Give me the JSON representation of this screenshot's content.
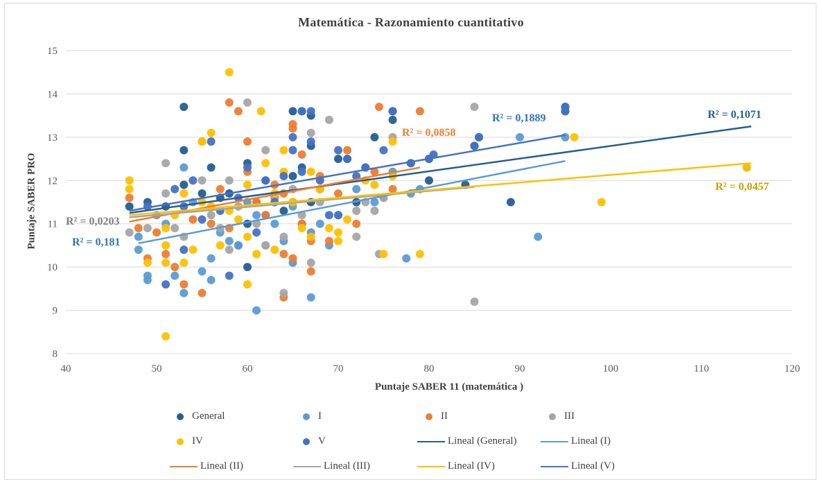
{
  "chart_data": {
    "type": "scatter",
    "title": "Matemática - Razonamiento  cuantitativo",
    "xlabel": "Puntaje  SABER 11 (matemática  )",
    "ylabel": "Puntaje  SABER PRO",
    "xlim": [
      40,
      120
    ],
    "ylim": [
      8,
      15
    ],
    "x_ticks": [
      "40",
      "50",
      "60",
      "70",
      "80",
      "90",
      "100",
      "110",
      "120"
    ],
    "y_ticks": [
      "8",
      "9",
      "10",
      "11",
      "12",
      "13",
      "14",
      "15"
    ],
    "grid": "horizontal",
    "legend_position": "bottom",
    "series": [
      {
        "name": "General",
        "color": "#255e91",
        "points": [
          [
            47,
            11.4
          ],
          [
            49,
            11.5
          ],
          [
            51,
            11.4
          ],
          [
            53,
            13.7
          ],
          [
            53,
            12.7
          ],
          [
            53,
            11.9
          ],
          [
            55,
            11.7
          ],
          [
            56,
            12.3
          ],
          [
            57,
            11.6
          ],
          [
            58,
            11.7
          ],
          [
            59,
            10.5
          ],
          [
            60,
            12.4
          ],
          [
            60,
            11.0
          ],
          [
            60,
            10.0
          ],
          [
            61,
            11.5
          ],
          [
            62,
            12.0
          ],
          [
            62,
            11.2
          ],
          [
            63,
            11.6
          ],
          [
            64,
            11.3
          ],
          [
            65,
            13.6
          ],
          [
            65,
            12.1
          ],
          [
            65,
            11.5
          ],
          [
            66,
            12.3
          ],
          [
            66,
            13.6
          ],
          [
            67,
            13.5
          ],
          [
            67,
            12.8
          ],
          [
            67,
            11.5
          ],
          [
            68,
            11.8
          ],
          [
            70,
            12.5
          ],
          [
            71,
            12.5
          ],
          [
            72,
            11.5
          ],
          [
            73,
            12.3
          ],
          [
            74,
            13.0
          ],
          [
            76,
            13.6
          ],
          [
            76,
            13.4
          ],
          [
            78,
            12.4
          ],
          [
            80,
            12.5
          ],
          [
            80,
            12.0
          ],
          [
            84,
            11.9
          ],
          [
            85,
            12.8
          ],
          [
            85.5,
            13.0
          ],
          [
            89,
            11.5
          ],
          [
            95,
            13.6
          ],
          [
            95,
            13.7
          ],
          [
            115,
            12.3
          ]
        ]
      },
      {
        "name": "I",
        "color": "#5b9bd5",
        "points": [
          [
            48,
            10.4
          ],
          [
            48,
            10.7
          ],
          [
            49,
            9.7
          ],
          [
            49,
            9.8
          ],
          [
            50,
            11.2
          ],
          [
            51,
            11.0
          ],
          [
            52,
            9.8
          ],
          [
            53,
            9.4
          ],
          [
            53,
            12.3
          ],
          [
            54,
            11.5
          ],
          [
            55,
            9.9
          ],
          [
            56,
            10.2
          ],
          [
            56,
            9.7
          ],
          [
            57,
            10.8
          ],
          [
            58,
            10.6
          ],
          [
            59,
            10.5
          ],
          [
            60,
            11.5
          ],
          [
            61,
            11.2
          ],
          [
            61,
            9.0
          ],
          [
            62,
            10.5
          ],
          [
            63,
            11.0
          ],
          [
            64,
            10.6
          ],
          [
            65,
            10.1
          ],
          [
            65,
            11.4
          ],
          [
            66,
            11.0
          ],
          [
            67,
            9.3
          ],
          [
            67,
            10.8
          ],
          [
            68,
            11.0
          ],
          [
            69,
            10.5
          ],
          [
            70,
            11.2
          ],
          [
            72,
            11.8
          ],
          [
            74,
            11.5
          ],
          [
            75,
            11.6
          ],
          [
            76,
            12.2
          ],
          [
            77.5,
            10.2
          ],
          [
            78,
            11.7
          ],
          [
            79,
            11.8
          ],
          [
            90,
            13.0
          ],
          [
            92,
            10.7
          ],
          [
            95,
            13.0
          ]
        ]
      },
      {
        "name": "II",
        "color": "#ed7d31",
        "points": [
          [
            47,
            11.6
          ],
          [
            48,
            10.9
          ],
          [
            49,
            10.2
          ],
          [
            50,
            10.8
          ],
          [
            51,
            10.3
          ],
          [
            52,
            10.0
          ],
          [
            53,
            9.6
          ],
          [
            54,
            11.1
          ],
          [
            55,
            12.9
          ],
          [
            55,
            9.4
          ],
          [
            56,
            11.0
          ],
          [
            57,
            11.8
          ],
          [
            58,
            13.8
          ],
          [
            58,
            10.9
          ],
          [
            59,
            13.6
          ],
          [
            60,
            12.9
          ],
          [
            60,
            12.2
          ],
          [
            61,
            11.5
          ],
          [
            62,
            11.2
          ],
          [
            63,
            11.9
          ],
          [
            64,
            10.3
          ],
          [
            64,
            9.3
          ],
          [
            64,
            11.7
          ],
          [
            65,
            13.2
          ],
          [
            65,
            13.3
          ],
          [
            65,
            10.2
          ],
          [
            66,
            12.6
          ],
          [
            66,
            11.0
          ],
          [
            67,
            9.9
          ],
          [
            67,
            10.6
          ],
          [
            68,
            12.1
          ],
          [
            69,
            10.6
          ],
          [
            70,
            11.7
          ],
          [
            71,
            12.7
          ],
          [
            72,
            11.0
          ],
          [
            74,
            12.2
          ],
          [
            74.5,
            13.7
          ],
          [
            76,
            11.8
          ],
          [
            79,
            13.6
          ]
        ]
      },
      {
        "name": "III",
        "color": "#a5a5a5",
        "points": [
          [
            47,
            10.8
          ],
          [
            49,
            10.9
          ],
          [
            51,
            11.7
          ],
          [
            51,
            12.4
          ],
          [
            52,
            10.9
          ],
          [
            53,
            10.7
          ],
          [
            55,
            12.0
          ],
          [
            56,
            11.2
          ],
          [
            57,
            10.9
          ],
          [
            58,
            10.4
          ],
          [
            58,
            12.0
          ],
          [
            59,
            11.4
          ],
          [
            60,
            13.8
          ],
          [
            61,
            11.0
          ],
          [
            62,
            12.7
          ],
          [
            62,
            10.5
          ],
          [
            63,
            11.6
          ],
          [
            64,
            9.4
          ],
          [
            64,
            10.7
          ],
          [
            65,
            11.8
          ],
          [
            66,
            11.2
          ],
          [
            67,
            10.1
          ],
          [
            67,
            13.1
          ],
          [
            68,
            11.5
          ],
          [
            69,
            13.4
          ],
          [
            70,
            11.2
          ],
          [
            72,
            10.7
          ],
          [
            72,
            11.3
          ],
          [
            73,
            11.5
          ],
          [
            74,
            11.3
          ],
          [
            74.5,
            10.3
          ],
          [
            75,
            11.6
          ],
          [
            76,
            13.0
          ],
          [
            85,
            9.2
          ],
          [
            85,
            13.7
          ]
        ]
      },
      {
        "name": "IV",
        "color": "#ffc000",
        "points": [
          [
            47,
            12.0
          ],
          [
            47,
            11.8
          ],
          [
            49,
            10.1
          ],
          [
            51,
            8.4
          ],
          [
            51,
            10.1
          ],
          [
            51,
            10.5
          ],
          [
            51,
            10.9
          ],
          [
            52,
            11.2
          ],
          [
            53,
            10.1
          ],
          [
            53,
            11.7
          ],
          [
            54,
            10.4
          ],
          [
            55,
            12.9
          ],
          [
            55,
            11.5
          ],
          [
            56,
            13.1
          ],
          [
            56,
            11.4
          ],
          [
            57,
            10.5
          ],
          [
            58,
            14.5
          ],
          [
            58,
            11.3
          ],
          [
            59,
            11.1
          ],
          [
            60,
            9.6
          ],
          [
            60,
            10.7
          ],
          [
            60,
            11.9
          ],
          [
            61,
            10.3
          ],
          [
            61.5,
            13.6
          ],
          [
            62,
            12.4
          ],
          [
            63,
            11.7
          ],
          [
            63,
            10.4
          ],
          [
            64,
            12.7
          ],
          [
            64,
            12.2
          ],
          [
            65,
            11.5
          ],
          [
            66,
            10.9
          ],
          [
            67,
            12.2
          ],
          [
            67,
            10.7
          ],
          [
            68,
            11.8
          ],
          [
            69,
            10.9
          ],
          [
            70,
            10.6
          ],
          [
            70,
            10.8
          ],
          [
            71,
            11.1
          ],
          [
            73,
            12.0
          ],
          [
            74,
            11.9
          ],
          [
            75,
            10.3
          ],
          [
            76,
            12.9
          ],
          [
            76,
            12.1
          ],
          [
            79,
            10.3
          ],
          [
            96,
            13.0
          ],
          [
            99,
            11.5
          ],
          [
            115,
            12.3
          ]
        ]
      },
      {
        "name": "V",
        "color": "#4472c4",
        "points": [
          [
            49,
            11.4
          ],
          [
            51,
            9.6
          ],
          [
            52,
            11.8
          ],
          [
            53,
            11.4
          ],
          [
            53,
            10.4
          ],
          [
            54,
            12.0
          ],
          [
            55,
            11.1
          ],
          [
            56,
            12.9
          ],
          [
            57,
            11.3
          ],
          [
            58,
            9.8
          ],
          [
            59,
            11.6
          ],
          [
            60,
            12.3
          ],
          [
            61,
            10.8
          ],
          [
            62,
            12.0
          ],
          [
            63,
            11.5
          ],
          [
            64,
            12.1
          ],
          [
            65,
            12.7
          ],
          [
            65,
            13.0
          ],
          [
            66,
            12.2
          ],
          [
            66,
            13.6
          ],
          [
            67,
            12.9
          ],
          [
            67,
            13.6
          ],
          [
            68,
            12.0
          ],
          [
            69,
            11.2
          ],
          [
            70,
            12.7
          ],
          [
            70,
            11.2
          ],
          [
            71,
            12.5
          ],
          [
            72,
            12.1
          ],
          [
            73,
            12.3
          ],
          [
            75,
            12.7
          ],
          [
            76,
            13.6
          ],
          [
            78,
            12.4
          ],
          [
            80,
            12.5
          ],
          [
            80.5,
            12.6
          ],
          [
            85,
            12.8
          ],
          [
            85.5,
            13.0
          ],
          [
            95,
            13.7
          ],
          [
            95,
            13.6
          ]
        ]
      }
    ],
    "trendlines": [
      {
        "name": "Lineal (General)",
        "color": "#255e91",
        "x": [
          47,
          115.5
        ],
        "y": [
          11.25,
          13.25
        ],
        "r2": "R² = 0,1071",
        "r2_color": "#255e91"
      },
      {
        "name": "Lineal (I)",
        "color": "#5b9bd5",
        "x": [
          48,
          95
        ],
        "y": [
          10.55,
          12.45
        ],
        "r2": "R² = 0,181",
        "r2_color": "#2e75b6"
      },
      {
        "name": "Lineal (II)",
        "color": "#ed7d31",
        "x": [
          47,
          79
        ],
        "y": [
          11.05,
          12.3
        ],
        "r2": "R² = 0,0858",
        "r2_color": "#ed7d31"
      },
      {
        "name": "Lineal (III)",
        "color": "#a5a5a5",
        "x": [
          47,
          85
        ],
        "y": [
          11.15,
          11.85
        ],
        "r2": "R² = 0,0203",
        "r2_color": "#7f7f7f"
      },
      {
        "name": "Lineal (IV)",
        "color": "#ffc000",
        "x": [
          47,
          115.5
        ],
        "y": [
          11.2,
          12.4
        ],
        "r2": "R² = 0,0457",
        "r2_color": "#c9a000"
      },
      {
        "name": "Lineal (V)",
        "color": "#4472c4",
        "x": [
          47,
          95
        ],
        "y": [
          11.3,
          13.05
        ],
        "r2": "R² = 0,1889",
        "r2_color": "#2e75b6"
      }
    ]
  }
}
